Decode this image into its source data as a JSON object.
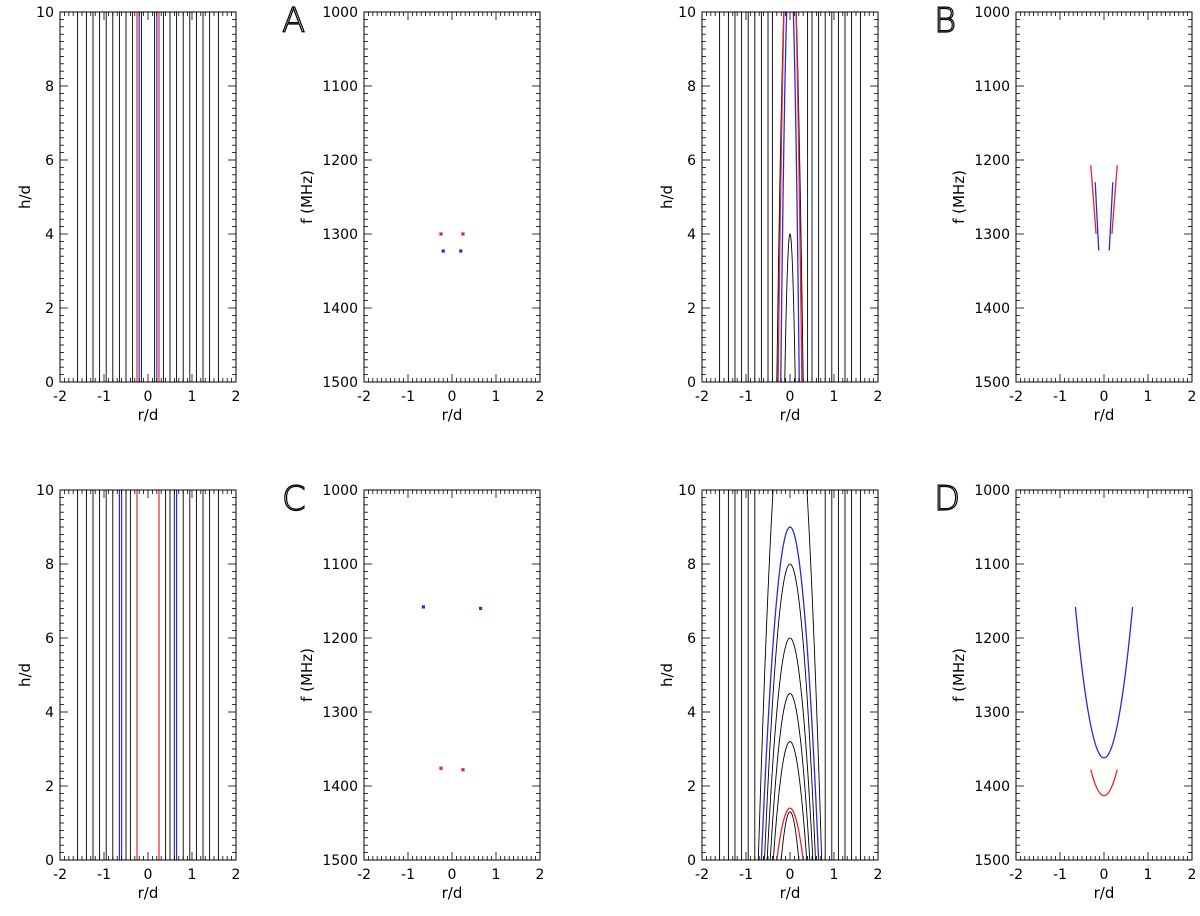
{
  "colors": {
    "axis": "#000000",
    "contour": "#000000",
    "red": "#e8242c",
    "blue": "#2b2bd6"
  },
  "chart_data": [
    {
      "id": "A-left",
      "type": "line",
      "xlabel": "r/d",
      "ylabel": "h/d",
      "xlim": [
        -2,
        2
      ],
      "ylim": [
        0,
        10
      ],
      "y_inverted": false,
      "xticks": [
        "-2",
        "-1",
        "0",
        "1",
        "2"
      ],
      "yticks": [
        "0",
        "2",
        "4",
        "6",
        "8",
        "10"
      ],
      "contours": {
        "kind": "vertical",
        "x": [
          -1.6,
          -1.4,
          -1.25,
          -1.1,
          -0.95,
          -0.8,
          -0.65,
          -0.5,
          -0.35,
          -0.15,
          0.15,
          0.35,
          0.5,
          0.65,
          0.8,
          0.95,
          1.1,
          1.25,
          1.4,
          1.6
        ]
      },
      "series": [
        {
          "name": "red",
          "kind": "vertical",
          "x": [
            -0.25,
            0.25
          ]
        },
        {
          "name": "blue",
          "kind": "vertical",
          "x": [
            -0.2,
            0.2
          ]
        }
      ]
    },
    {
      "id": "A-right",
      "type": "scatter",
      "label": "A",
      "xlabel": "r/d",
      "ylabel": "f (MHz)",
      "xlim": [
        -2,
        2
      ],
      "ylim": [
        1000,
        1500
      ],
      "y_inverted": true,
      "xticks": [
        "-2",
        "-1",
        "0",
        "1",
        "2"
      ],
      "yticks": [
        "1000",
        "1100",
        "1200",
        "1300",
        "1400",
        "1500"
      ],
      "series": [
        {
          "name": "red",
          "x": [
            -0.25,
            0.25
          ],
          "y": [
            1300,
            1300
          ]
        },
        {
          "name": "blue",
          "x": [
            -0.2,
            0.2
          ],
          "y": [
            1323,
            1323
          ]
        }
      ]
    },
    {
      "id": "B-left",
      "type": "line",
      "xlabel": "r/d",
      "ylabel": "h/d",
      "xlim": [
        -2,
        2
      ],
      "ylim": [
        0,
        10
      ],
      "y_inverted": false,
      "xticks": [
        "-2",
        "-1",
        "0",
        "1",
        "2"
      ],
      "yticks": [
        "0",
        "2",
        "4",
        "6",
        "8",
        "10"
      ],
      "contours": {
        "kind": "vertical",
        "x": [
          -1.6,
          -1.4,
          -1.25,
          -1.1,
          -0.95,
          -0.8,
          -0.65,
          -0.5,
          -0.4,
          0.4,
          0.5,
          0.65,
          0.8,
          0.95,
          1.1,
          1.25,
          1.4,
          1.6
        ]
      },
      "arcs_black": [
        {
          "halfwidth": 0.12,
          "height": 4.0
        },
        {
          "halfwidth": 0.3,
          "height": 13
        }
      ],
      "series": [
        {
          "name": "red",
          "kind": "arc",
          "halfwidth": 0.27,
          "height": 13.5
        },
        {
          "name": "blue",
          "kind": "arc",
          "halfwidth": 0.21,
          "height": 11.5
        }
      ]
    },
    {
      "id": "B-right",
      "type": "line",
      "label": "B",
      "xlabel": "r/d",
      "ylabel": "f (MHz)",
      "xlim": [
        -2,
        2
      ],
      "ylim": [
        1000,
        1500
      ],
      "y_inverted": true,
      "xticks": [
        "-2",
        "-1",
        "0",
        "1",
        "2"
      ],
      "yticks": [
        "1000",
        "1100",
        "1200",
        "1300",
        "1400",
        "1500"
      ],
      "series": [
        {
          "name": "red",
          "segments": [
            {
              "x": [
                -0.3,
                -0.18
              ],
              "y": [
                1207,
                1300
              ]
            },
            {
              "x": [
                0.3,
                0.18
              ],
              "y": [
                1207,
                1300
              ]
            }
          ]
        },
        {
          "name": "blue",
          "segments": [
            {
              "x": [
                -0.2,
                -0.12
              ],
              "y": [
                1230,
                1322
              ]
            },
            {
              "x": [
                0.2,
                0.12
              ],
              "y": [
                1230,
                1322
              ]
            }
          ]
        }
      ]
    },
    {
      "id": "C-left",
      "type": "line",
      "xlabel": "r/d",
      "ylabel": "h/d",
      "xlim": [
        -2,
        2
      ],
      "ylim": [
        0,
        10
      ],
      "y_inverted": false,
      "xticks": [
        "-2",
        "-1",
        "0",
        "1",
        "2"
      ],
      "yticks": [
        "0",
        "2",
        "4",
        "6",
        "8",
        "10"
      ],
      "contours": {
        "kind": "vertical",
        "x": [
          -1.6,
          -1.4,
          -1.25,
          -1.1,
          -0.95,
          -0.8,
          -0.5,
          -0.4,
          0.4,
          0.5,
          0.8,
          0.95,
          1.1,
          1.25,
          1.4,
          1.6
        ]
      },
      "series": [
        {
          "name": "red",
          "kind": "vertical",
          "x": [
            -0.25,
            0.25
          ]
        },
        {
          "name": "blue",
          "kind": "vertical",
          "x": [
            -0.65,
            -0.6,
            0.6,
            0.65
          ]
        }
      ]
    },
    {
      "id": "C-right",
      "type": "scatter",
      "label": "C",
      "xlabel": "r/d",
      "ylabel": "f (MHz)",
      "xlim": [
        -2,
        2
      ],
      "ylim": [
        1000,
        1500
      ],
      "y_inverted": true,
      "xticks": [
        "-2",
        "-1",
        "0",
        "1",
        "2"
      ],
      "yticks": [
        "1000",
        "1100",
        "1200",
        "1300",
        "1400",
        "1500"
      ],
      "series": [
        {
          "name": "blue",
          "x": [
            -0.65,
            0.65
          ],
          "y": [
            1158,
            1160
          ]
        },
        {
          "name": "red",
          "x": [
            -0.25,
            0.25
          ],
          "y": [
            1376,
            1378
          ]
        }
      ]
    },
    {
      "id": "D-left",
      "type": "line",
      "xlabel": "r/d",
      "ylabel": "h/d",
      "xlim": [
        -2,
        2
      ],
      "ylim": [
        0,
        10
      ],
      "y_inverted": false,
      "xticks": [
        "-2",
        "-1",
        "0",
        "1",
        "2"
      ],
      "yticks": [
        "0",
        "2",
        "4",
        "6",
        "8",
        "10"
      ],
      "contours": {
        "kind": "vertical",
        "x": [
          -1.6,
          -1.4,
          -1.25,
          -1.1,
          -0.95,
          -0.8,
          0.8,
          0.95,
          1.1,
          1.25,
          1.4,
          1.6
        ]
      },
      "arcs_black": [
        {
          "halfwidth": 0.58,
          "height": 8.0
        },
        {
          "halfwidth": 0.52,
          "height": 6.0
        },
        {
          "halfwidth": 0.45,
          "height": 4.5
        },
        {
          "halfwidth": 0.38,
          "height": 3.2
        },
        {
          "halfwidth": 0.2,
          "height": 1.3
        },
        {
          "halfwidth": 0.72,
          "height": 14
        }
      ],
      "series": [
        {
          "name": "blue",
          "kind": "arc",
          "halfwidth": 0.65,
          "height": 9.0
        },
        {
          "name": "red",
          "kind": "arc",
          "halfwidth": 0.3,
          "height": 1.4
        }
      ]
    },
    {
      "id": "D-right",
      "type": "line",
      "label": "D",
      "xlabel": "r/d",
      "ylabel": "f (MHz)",
      "xlim": [
        -2,
        2
      ],
      "ylim": [
        1000,
        1500
      ],
      "y_inverted": true,
      "xticks": [
        "-2",
        "-1",
        "0",
        "1",
        "2"
      ],
      "yticks": [
        "1000",
        "1100",
        "1200",
        "1300",
        "1400",
        "1500"
      ],
      "series": [
        {
          "name": "blue",
          "kind": "parabola",
          "halfwidth": 0.65,
          "vertex": 1362,
          "edge": 1158
        },
        {
          "name": "red",
          "kind": "parabola",
          "halfwidth": 0.3,
          "vertex": 1413,
          "edge": 1378
        }
      ]
    }
  ]
}
